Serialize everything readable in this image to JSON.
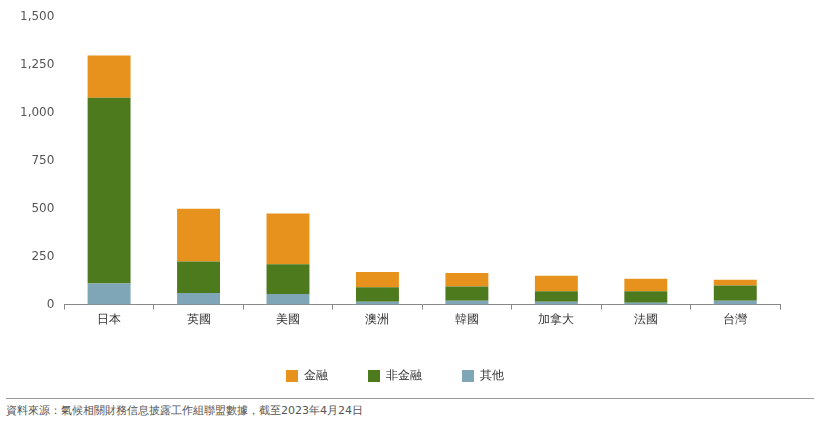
{
  "chart_data": {
    "type": "bar",
    "stacked": true,
    "categories": [
      "日本",
      "英國",
      "美國",
      "澳洲",
      "韓國",
      "加拿大",
      "法國",
      "台灣"
    ],
    "series": [
      {
        "name": "其他",
        "color": "#7ea6b7",
        "values": [
          110,
          60,
          55,
          15,
          20,
          15,
          10,
          20
        ]
      },
      {
        "name": "非金融",
        "color": "#4e7a1e",
        "values": [
          970,
          165,
          155,
          75,
          75,
          55,
          60,
          80
        ]
      },
      {
        "name": "金融",
        "color": "#e8921e",
        "values": [
          220,
          275,
          265,
          80,
          70,
          80,
          65,
          30
        ]
      }
    ],
    "ylim": [
      0,
      1500
    ],
    "yticks": [
      0,
      250,
      500,
      750,
      1000,
      1250,
      1500
    ],
    "grid": false,
    "legend": "bottom",
    "source": "資料來源：氣候相關財務信息披露工作組聯盟數據，截至2023年4月24日"
  }
}
